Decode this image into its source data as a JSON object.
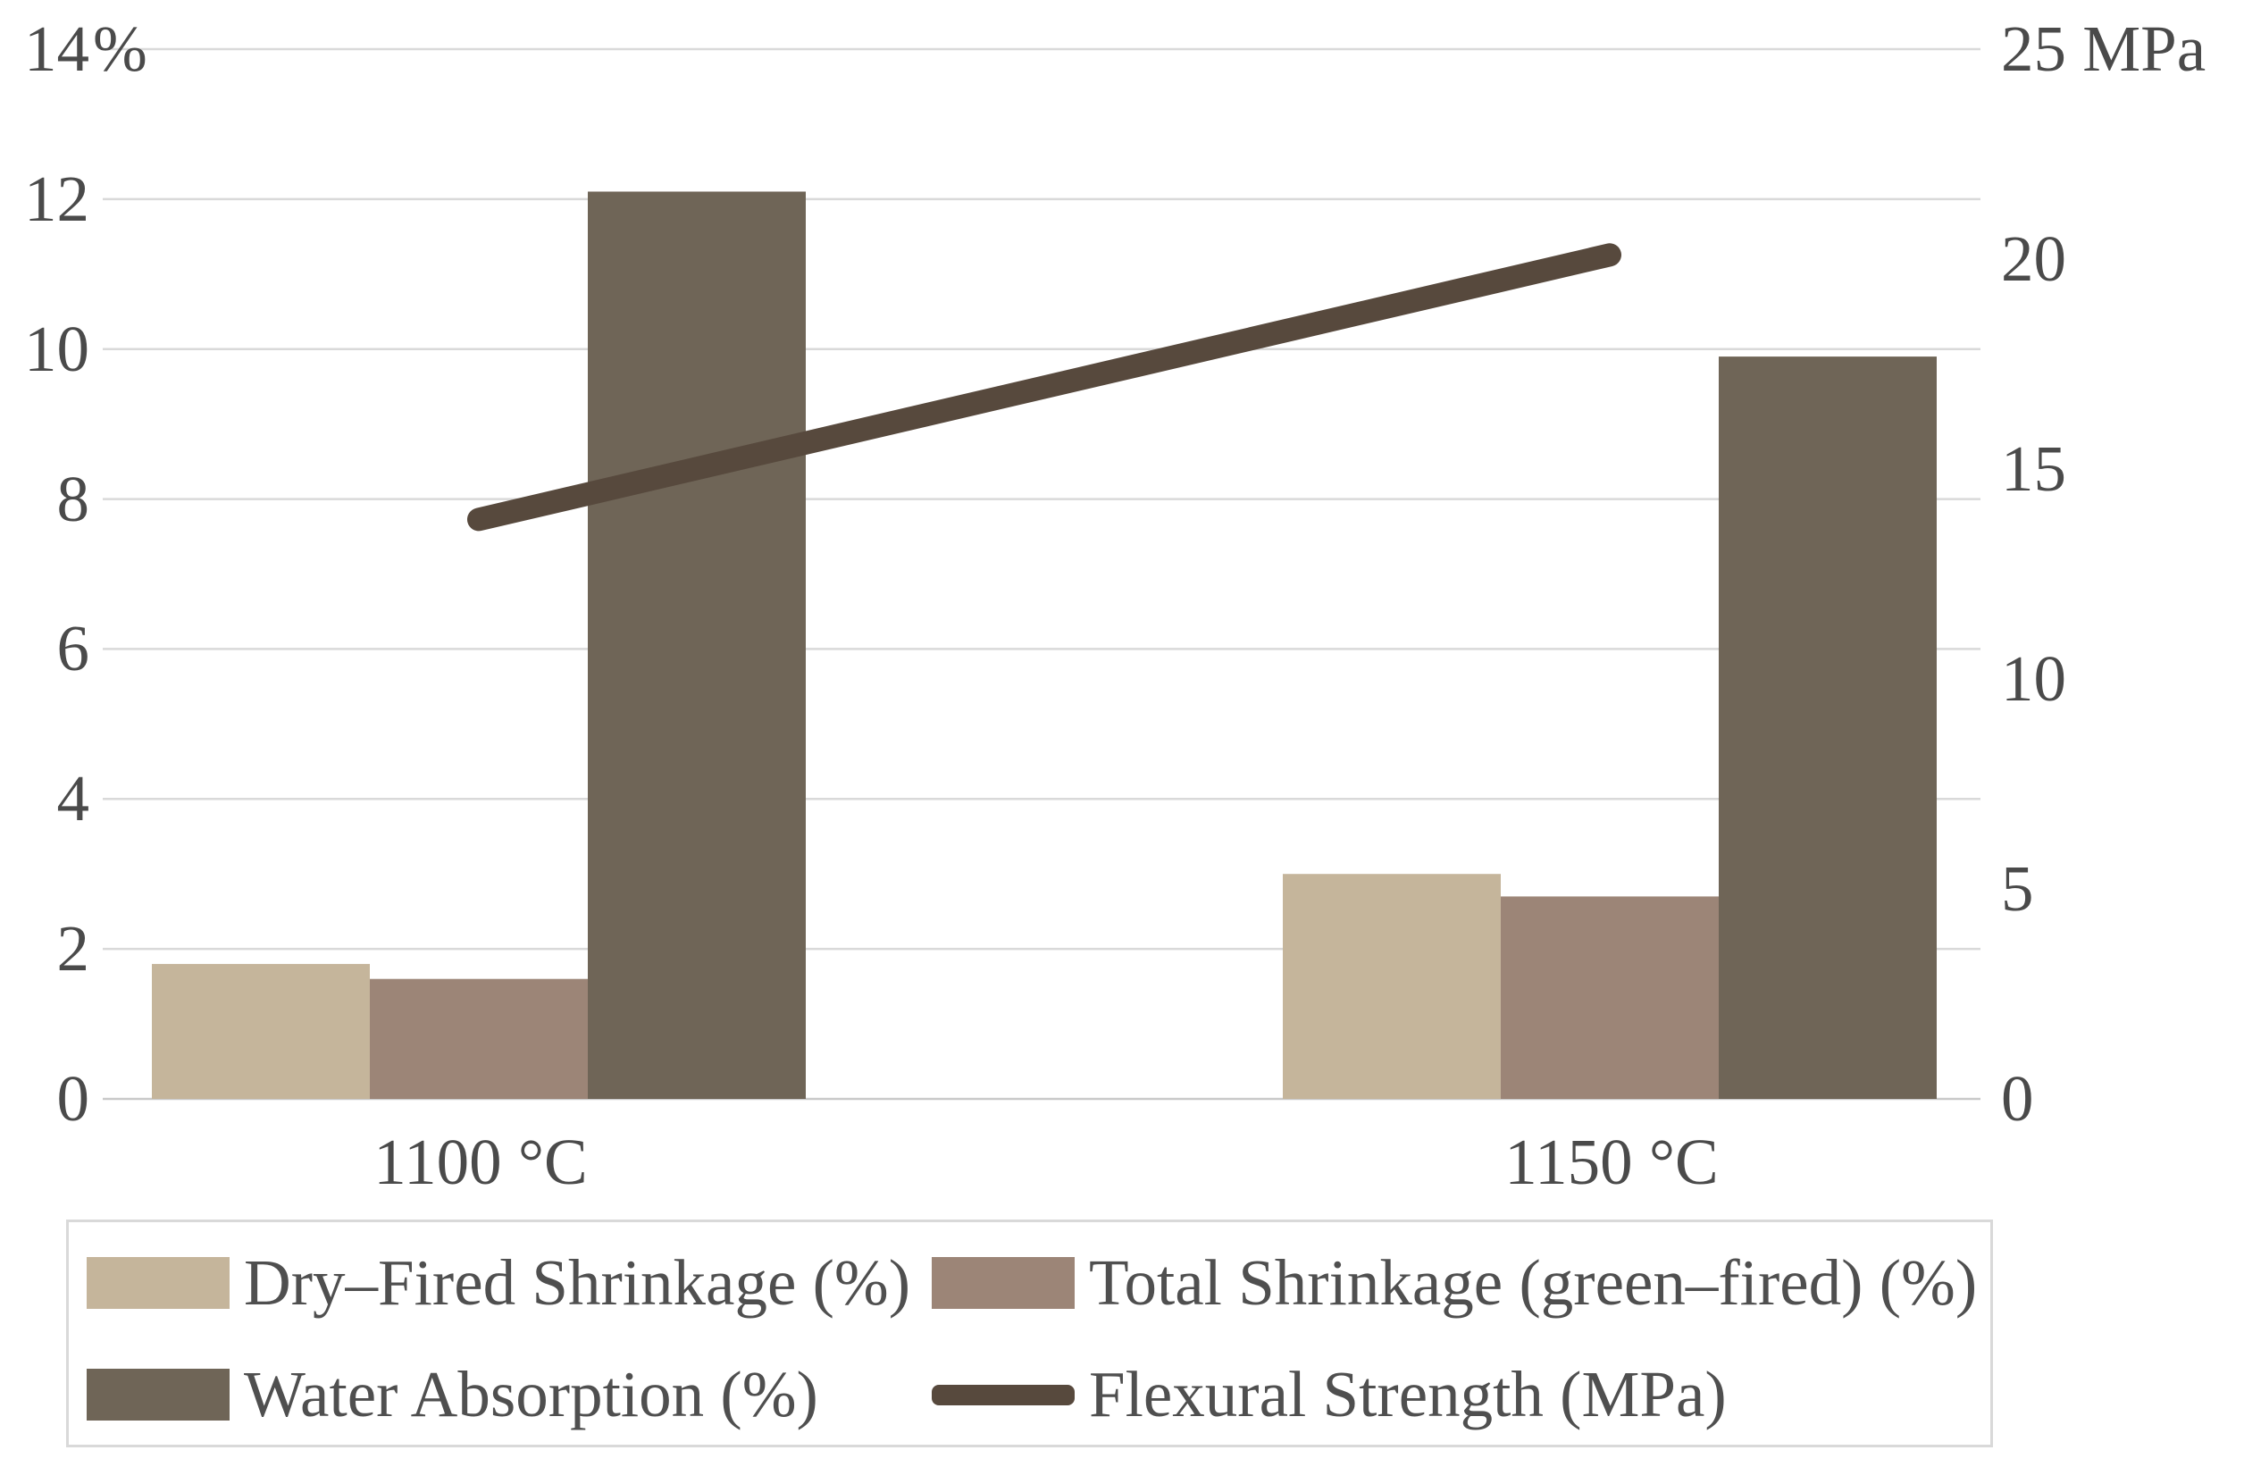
{
  "chart_data": {
    "type": "combo",
    "title": "",
    "categories": [
      "1100 °C",
      "1150 °C"
    ],
    "series": [
      {
        "name": "Dry–Fired Shrinkage (%)",
        "type": "bar",
        "axis": "left",
        "color": "#C5B59B",
        "values": [
          1.8,
          3.0
        ]
      },
      {
        "name": "Total Shrinkage (green–fired) (%)",
        "type": "bar",
        "axis": "left",
        "color": "#9C8577",
        "values": [
          1.6,
          2.7
        ]
      },
      {
        "name": "Water Absorption (%)",
        "type": "bar",
        "axis": "left",
        "color": "#6F6557",
        "values": [
          12.1,
          9.9
        ]
      },
      {
        "name": "Flexural Strength (MPa)",
        "type": "line",
        "axis": "right",
        "color": "#57493D",
        "values": [
          13.8,
          20.1
        ]
      }
    ],
    "left_axis": {
      "min": 0,
      "max": 14,
      "step": 2,
      "unit": "%",
      "tick_labels": [
        "14%",
        "12",
        "10",
        "8",
        "6",
        "4",
        "2",
        "0"
      ]
    },
    "right_axis": {
      "min": 0,
      "max": 25,
      "step": 5,
      "unit": "MPa",
      "tick_labels": [
        "25 MPa",
        "20",
        "15",
        "10",
        "5",
        "0"
      ]
    },
    "grid": true,
    "legend_position": "bottom"
  },
  "colors": {
    "background": "#FFFFFF",
    "gridline": "#D9D9D9",
    "baseline": "#C9C9C9",
    "axis_text": "#4A4A4A",
    "legend_border": "#D9D9D9"
  }
}
